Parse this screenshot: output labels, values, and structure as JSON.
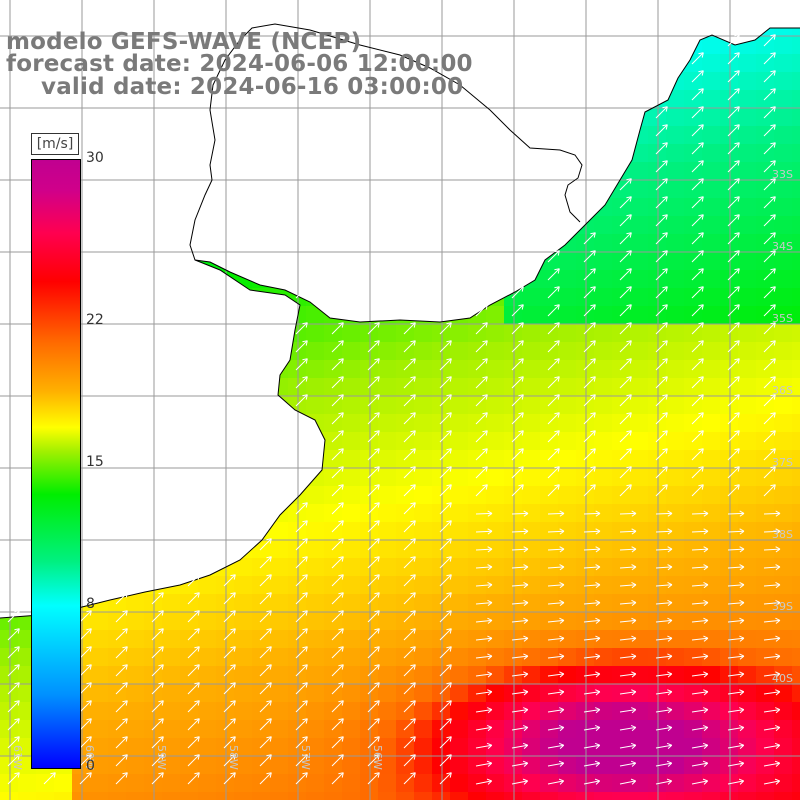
{
  "title": {
    "line1": "modelo GEFS-WAVE (NCEP)",
    "line2": "forecast date: 2024-06-06 12:00:00",
    "line3": "valid date: 2024-06-16 03:00:00"
  },
  "colorbar": {
    "units": "[m/s]",
    "ticks": [
      {
        "label": "30",
        "value": 30
      },
      {
        "label": "22",
        "value": 22
      },
      {
        "label": "15",
        "value": 15
      },
      {
        "label": "8",
        "value": 8
      },
      {
        "label": "0",
        "value": 0
      }
    ],
    "colors": [
      "#0000ff",
      "#0090ff",
      "#00ffff",
      "#00ee00",
      "#ffff00",
      "#ff6a00",
      "#ff0000",
      "#c00090"
    ]
  },
  "map": {
    "lat_labels": [
      "34S",
      "35S",
      "36S",
      "37S",
      "38S",
      "39S",
      "40S"
    ],
    "lon_labels": [
      "61W",
      "60W",
      "59W",
      "58W",
      "57W",
      "56W"
    ],
    "lat_labels_partial": [
      "33S"
    ],
    "vector_field": "wind / wave direction arrows",
    "land_color": "#ffffff",
    "coastline_color": "#000000",
    "grid_color": "#999999"
  }
}
